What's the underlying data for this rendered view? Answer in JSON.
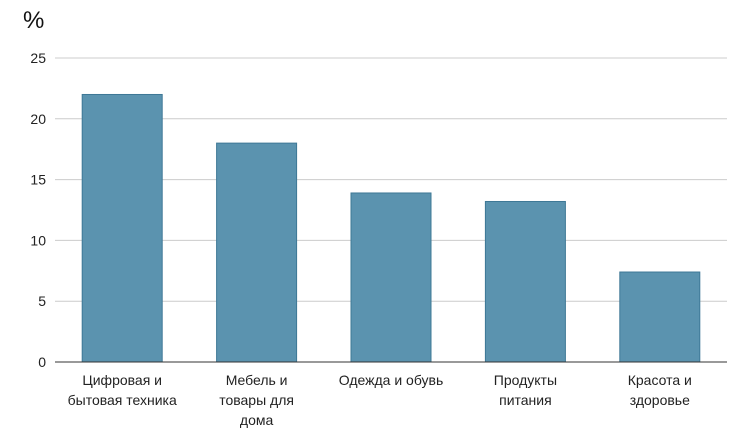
{
  "chart_data": {
    "type": "bar",
    "unit_label": "%",
    "categories": [
      [
        "Цифровая и",
        "бытовая техника"
      ],
      [
        "Мебель и",
        "товары для",
        "дома"
      ],
      [
        "Одежда и обувь"
      ],
      [
        "Продукты",
        "питания"
      ],
      [
        "Красота и",
        "здоровье"
      ]
    ],
    "values": [
      22,
      18,
      13.9,
      13.2,
      7.4
    ],
    "ylim": [
      0,
      25
    ],
    "yticks": [
      "0",
      "5",
      "10",
      "15",
      "20",
      "25"
    ],
    "grid": true,
    "colors": {
      "bar": "#5b93af",
      "bar_stroke": "#3e7896",
      "grid": "#cccccc",
      "axis": "#333333"
    }
  }
}
